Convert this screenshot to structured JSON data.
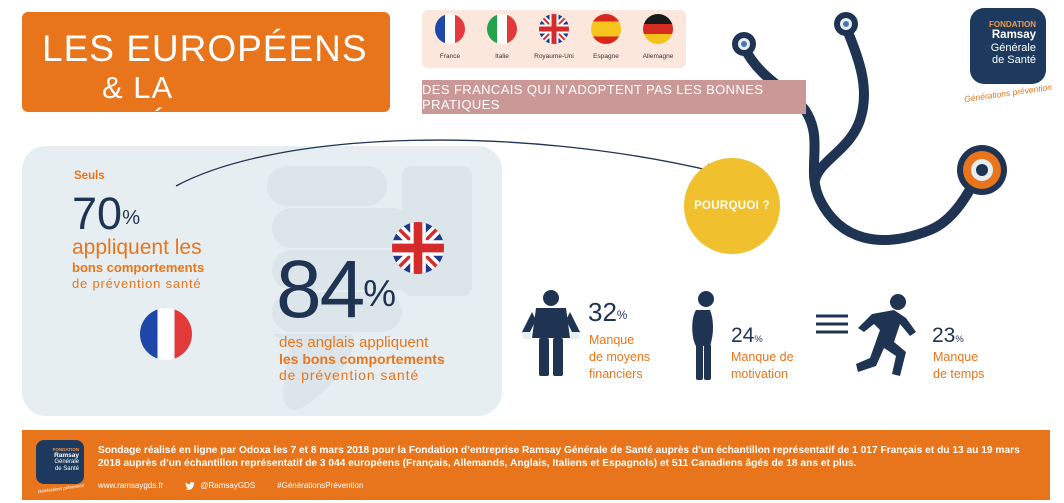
{
  "title": {
    "line1": "LES EUROPÉENS",
    "line2": "& LA PRÉVENTION"
  },
  "countries": [
    {
      "label": "France",
      "icon": "france-flag-icon"
    },
    {
      "label": "Italie",
      "icon": "italy-flag-icon"
    },
    {
      "label": "Royaume-Uni",
      "icon": "uk-flag-icon"
    },
    {
      "label": "Espagne",
      "icon": "spain-flag-icon"
    },
    {
      "label": "Allemagne",
      "icon": "germany-flag-icon"
    }
  ],
  "subtitle": "DES FRANCAIS QUI N’ADOPTENT PAS LES BONNES PRATIQUES",
  "brand": {
    "line1": "FONDATION",
    "line2": "Ramsay",
    "line3a": "Générale",
    "line3b": "de Santé",
    "tagline": "Générations prévention"
  },
  "france_stat": {
    "prefix": "Seuls",
    "value": "70",
    "unit": "%",
    "line1": "appliquent les",
    "line2": "bons comportements",
    "line3": "de prévention santé"
  },
  "uk_stat": {
    "value": "84",
    "unit": "%",
    "line1": "des anglais appliquent",
    "line2": "les bons comportements",
    "line3": "de prévention santé"
  },
  "pourquoi": "POURQUOI ?",
  "reasons": [
    {
      "value": "32",
      "unit": "%",
      "line1": "Manque",
      "line2": "de moyens",
      "line3": "financiers",
      "icon": "empty-pockets-person-icon"
    },
    {
      "value": "24",
      "unit": "%",
      "line1": "Manque de",
      "line2": "motivation",
      "line3": "",
      "icon": "tired-person-icon"
    },
    {
      "value": "23",
      "unit": "%",
      "line1": "Manque",
      "line2": "de temps",
      "line3": "",
      "icon": "running-person-icon"
    }
  ],
  "footer": {
    "text": "Sondage réalisé en ligne par Odoxa les 7 et 8 mars 2018 pour la Fondation d’entreprise Ramsay Générale de Santé auprès d’un échantillon représentatif de 1 017 Français et du 13 au 19 mars 2018 auprès d’un échantillon représentatif de 3 044 européens (Français, Allemands, Anglais, Italiens et Espagnols) et 511 Canadiens âgés de 18 ans et plus.",
    "website": "www.ramsaygds.fr",
    "twitter": "@RamsayGDS",
    "hashtag": "#GénérationsPrévention",
    "logo_line1": "FONDATION",
    "logo_line2": "Ramsay",
    "logo_line3a": "Générale",
    "logo_line3b": "de Santé",
    "logo_tagline": "Générations prévention"
  },
  "colors": {
    "orange": "#e8751c",
    "navy": "#1f3352",
    "yellow": "#f0c02e",
    "rose": "#c99897",
    "panel": "#e6eef2"
  }
}
